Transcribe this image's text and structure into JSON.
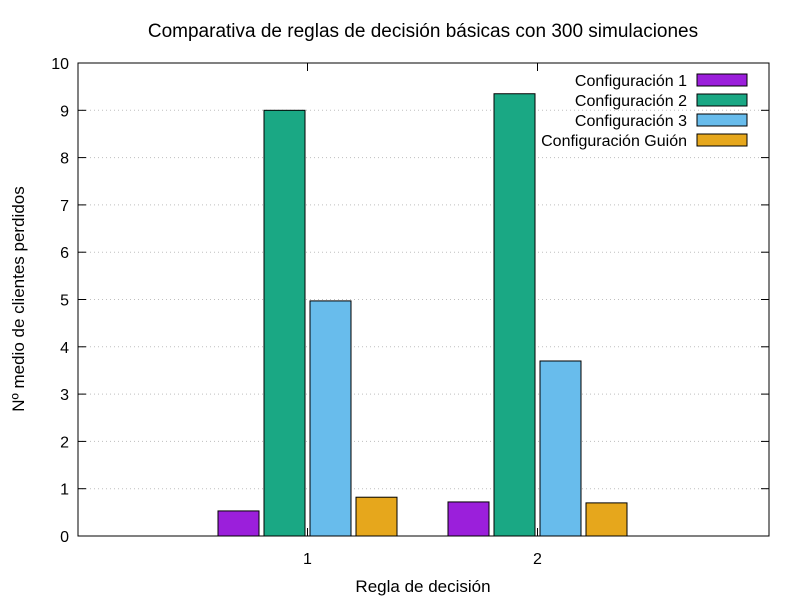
{
  "chart_data": {
    "type": "bar",
    "title": "Comparativa de reglas de decisión básicas con 300 simulaciones",
    "xlabel": "Regla de decisión",
    "ylabel": "Nº medio de clientes perdidos",
    "categories": [
      "1",
      "2"
    ],
    "ylim": [
      0,
      10
    ],
    "yticks": [
      "0",
      "1",
      "2",
      "3",
      "4",
      "5",
      "6",
      "7",
      "8",
      "9",
      "10"
    ],
    "grid": "horizontal dotted",
    "legend_position": "top-right",
    "series": [
      {
        "name": "Configuración 1",
        "color": "#9b1fdb",
        "values": [
          0.53,
          0.72
        ]
      },
      {
        "name": "Configuración 2",
        "color": "#1aa884",
        "values": [
          9.0,
          9.35
        ]
      },
      {
        "name": "Configuración 3",
        "color": "#68bcec",
        "values": [
          4.97,
          3.7
        ]
      },
      {
        "name": "Configuración Guión",
        "color": "#e6a71c",
        "values": [
          0.82,
          0.7
        ]
      }
    ]
  }
}
